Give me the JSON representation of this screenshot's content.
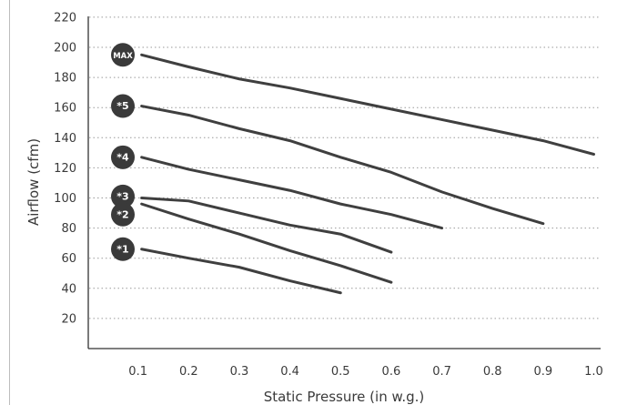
{
  "chart_data": {
    "type": "line",
    "xlabel": "Static Pressure (in w.g.)",
    "ylabel": "Airflow (cfm)",
    "xlim": [
      0,
      1.0
    ],
    "ylim": [
      0,
      220
    ],
    "x_ticks": [
      "0.1",
      "0.2",
      "0.3",
      "0.4",
      "0.5",
      "0.6",
      "0.7",
      "0.8",
      "0.9",
      "1.0"
    ],
    "y_ticks": [
      "20",
      "40",
      "60",
      "80",
      "100",
      "120",
      "140",
      "160",
      "180",
      "200",
      "220"
    ],
    "grid": "horizontal-dotted",
    "line_color": "#3f3f3f",
    "marker_color": "#3a3a3a",
    "series": [
      {
        "name": "MAX",
        "x": [
          0.1,
          0.2,
          0.3,
          0.4,
          0.5,
          0.6,
          0.7,
          0.8,
          0.9,
          1.0
        ],
        "y": [
          195,
          187,
          179,
          173,
          166,
          159,
          152,
          145,
          138,
          129
        ]
      },
      {
        "name": "*5",
        "x": [
          0.1,
          0.2,
          0.3,
          0.4,
          0.5,
          0.6,
          0.7,
          0.8,
          0.9
        ],
        "y": [
          161,
          155,
          146,
          138,
          127,
          117,
          104,
          93,
          83
        ]
      },
      {
        "name": "*4",
        "x": [
          0.1,
          0.2,
          0.3,
          0.4,
          0.5,
          0.6,
          0.7
        ],
        "y": [
          127,
          119,
          112,
          105,
          96,
          89,
          80
        ]
      },
      {
        "name": "*3",
        "x": [
          0.1,
          0.2,
          0.3,
          0.4,
          0.5,
          0.6
        ],
        "y": [
          100,
          98,
          90,
          82,
          76,
          64
        ]
      },
      {
        "name": "*2",
        "x": [
          0.1,
          0.2,
          0.3,
          0.4,
          0.5,
          0.6
        ],
        "y": [
          96,
          86,
          76,
          65,
          55,
          44
        ]
      },
      {
        "name": "*1",
        "x": [
          0.1,
          0.2,
          0.3,
          0.4,
          0.5
        ],
        "y": [
          66,
          60,
          54,
          45,
          37
        ]
      }
    ],
    "markers": [
      {
        "label": "MAX",
        "y": 195
      },
      {
        "label": "*5",
        "y": 161
      },
      {
        "label": "*4",
        "y": 127
      },
      {
        "label": "*3",
        "y": 101
      },
      {
        "label": "*2",
        "y": 89
      },
      {
        "label": "*1",
        "y": 66
      }
    ]
  }
}
